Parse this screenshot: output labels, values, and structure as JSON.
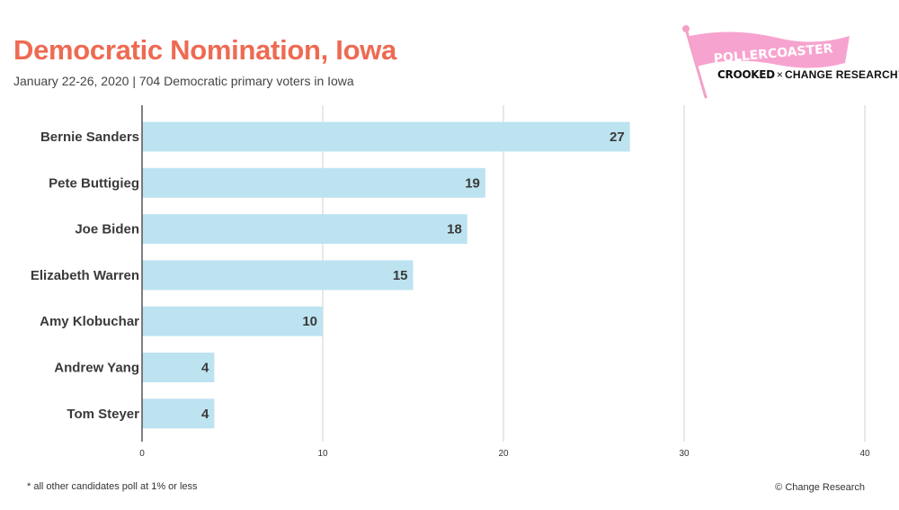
{
  "header": {
    "title": "Democratic Nomination, Iowa",
    "subtitle": "January 22-26, 2020 | 704 Democratic primary voters in Iowa"
  },
  "logo": {
    "flag_text": "POLLERCOASTER",
    "brand": "CROOKED",
    "separator": "×",
    "partner": "CHANGE RESEARCH™",
    "flag_color": "#f7a3cf"
  },
  "footer": {
    "note": "* all other candidates poll at 1% or less",
    "credit": "© Change Research"
  },
  "colors": {
    "title": "#ee6a52",
    "bar": "#bde3f1",
    "grid": "#d0d0d0",
    "axis": "#555555"
  },
  "chart_data": {
    "type": "bar",
    "orientation": "horizontal",
    "categories": [
      "Bernie Sanders",
      "Pete Buttigieg",
      "Joe Biden",
      "Elizabeth Warren",
      "Amy Klobuchar",
      "Andrew Yang",
      "Tom Steyer"
    ],
    "values": [
      27,
      19,
      18,
      15,
      10,
      4,
      4
    ],
    "xlim": [
      0,
      40
    ],
    "xticks": [
      0,
      10,
      20,
      30,
      40
    ],
    "grid": true,
    "data_labels": true
  }
}
